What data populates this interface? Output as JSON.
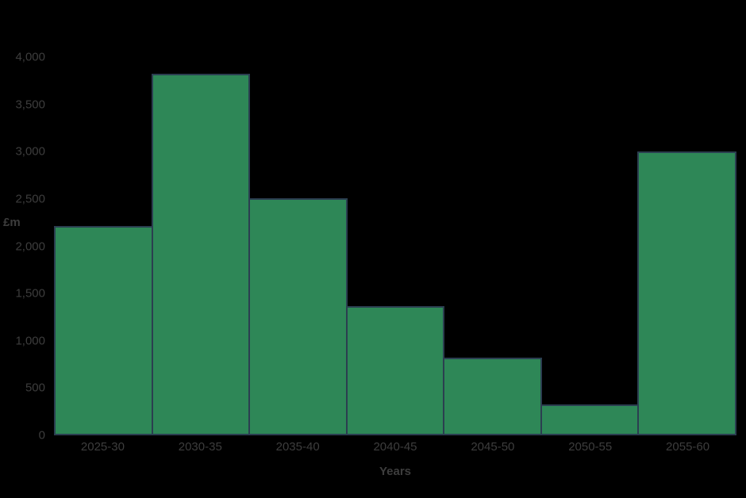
{
  "colors": {
    "background": "#000000",
    "bar_fill": "#2e8757",
    "bar_border": "#2b3e50",
    "text": "#3d3d3d"
  },
  "chart_data": {
    "type": "bar",
    "title": "",
    "xlabel": "Years",
    "ylabel": "£m",
    "categories": [
      "2025-30",
      "2030-35",
      "2035-40",
      "2040-45",
      "2045-50",
      "2050-55",
      "2055-60"
    ],
    "values": [
      2210,
      3825,
      2505,
      1370,
      825,
      330,
      3000
    ],
    "ylim": [
      0,
      4000
    ],
    "y_ticks": [
      {
        "value": 0,
        "label": "0"
      },
      {
        "value": 500,
        "label": "500"
      },
      {
        "value": 1000,
        "label": "1,000"
      },
      {
        "value": 1500,
        "label": "1,500"
      },
      {
        "value": 2000,
        "label": "2,000"
      },
      {
        "value": 2500,
        "label": "2,500"
      },
      {
        "value": 3000,
        "label": "3,000"
      },
      {
        "value": 3500,
        "label": "3,500"
      },
      {
        "value": 4000,
        "label": "4,000"
      }
    ],
    "grid": false,
    "legend": "none",
    "bar_gap": 0
  }
}
